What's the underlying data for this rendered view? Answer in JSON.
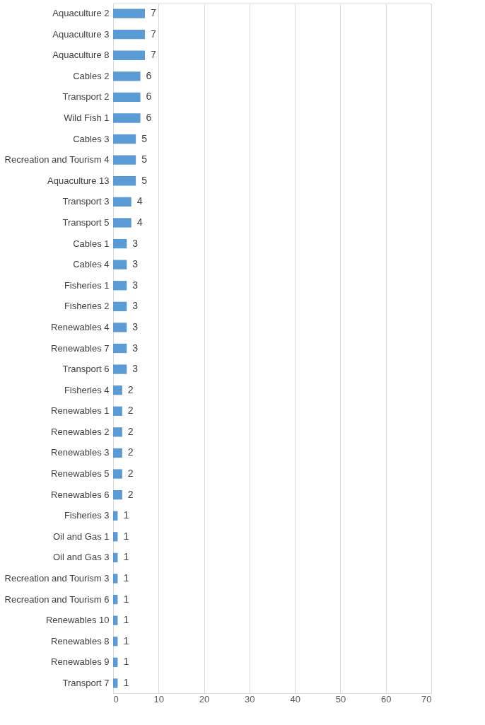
{
  "chart_data": {
    "type": "bar",
    "orientation": "horizontal",
    "categories": [
      "Aquaculture 2",
      "Aquaculture 3",
      "Aquaculture 8",
      "Cables 2",
      "Transport 2",
      "Wild Fish 1",
      "Cables 3",
      "Recreation and Tourism 4",
      "Aquaculture 13",
      "Transport 3",
      "Transport 5",
      "Cables 1",
      "Cables 4",
      "Fisheries 1",
      "Fisheries 2",
      "Renewables 4",
      "Renewables 7",
      "Transport 6",
      "Fisheries 4",
      "Renewables 1",
      "Renewables 2",
      "Renewables 3",
      "Renewables 5",
      "Renewables 6",
      "Fisheries 3",
      "Oil and Gas 1",
      "Oil and Gas 3",
      "Recreation and Tourism 3",
      "Recreation and Tourism 6",
      "Renewables 10",
      "Renewables 8",
      "Renewables 9",
      "Transport 7"
    ],
    "values": [
      7,
      7,
      7,
      6,
      6,
      6,
      5,
      5,
      5,
      4,
      4,
      3,
      3,
      3,
      3,
      3,
      3,
      3,
      2,
      2,
      2,
      2,
      2,
      2,
      1,
      1,
      1,
      1,
      1,
      1,
      1,
      1,
      1
    ],
    "color": "#5b9bd5",
    "xlim": [
      0,
      70
    ],
    "xticks": [
      0,
      10,
      20,
      30,
      40,
      50,
      60,
      70
    ],
    "grid": "x",
    "data_labels": true
  }
}
